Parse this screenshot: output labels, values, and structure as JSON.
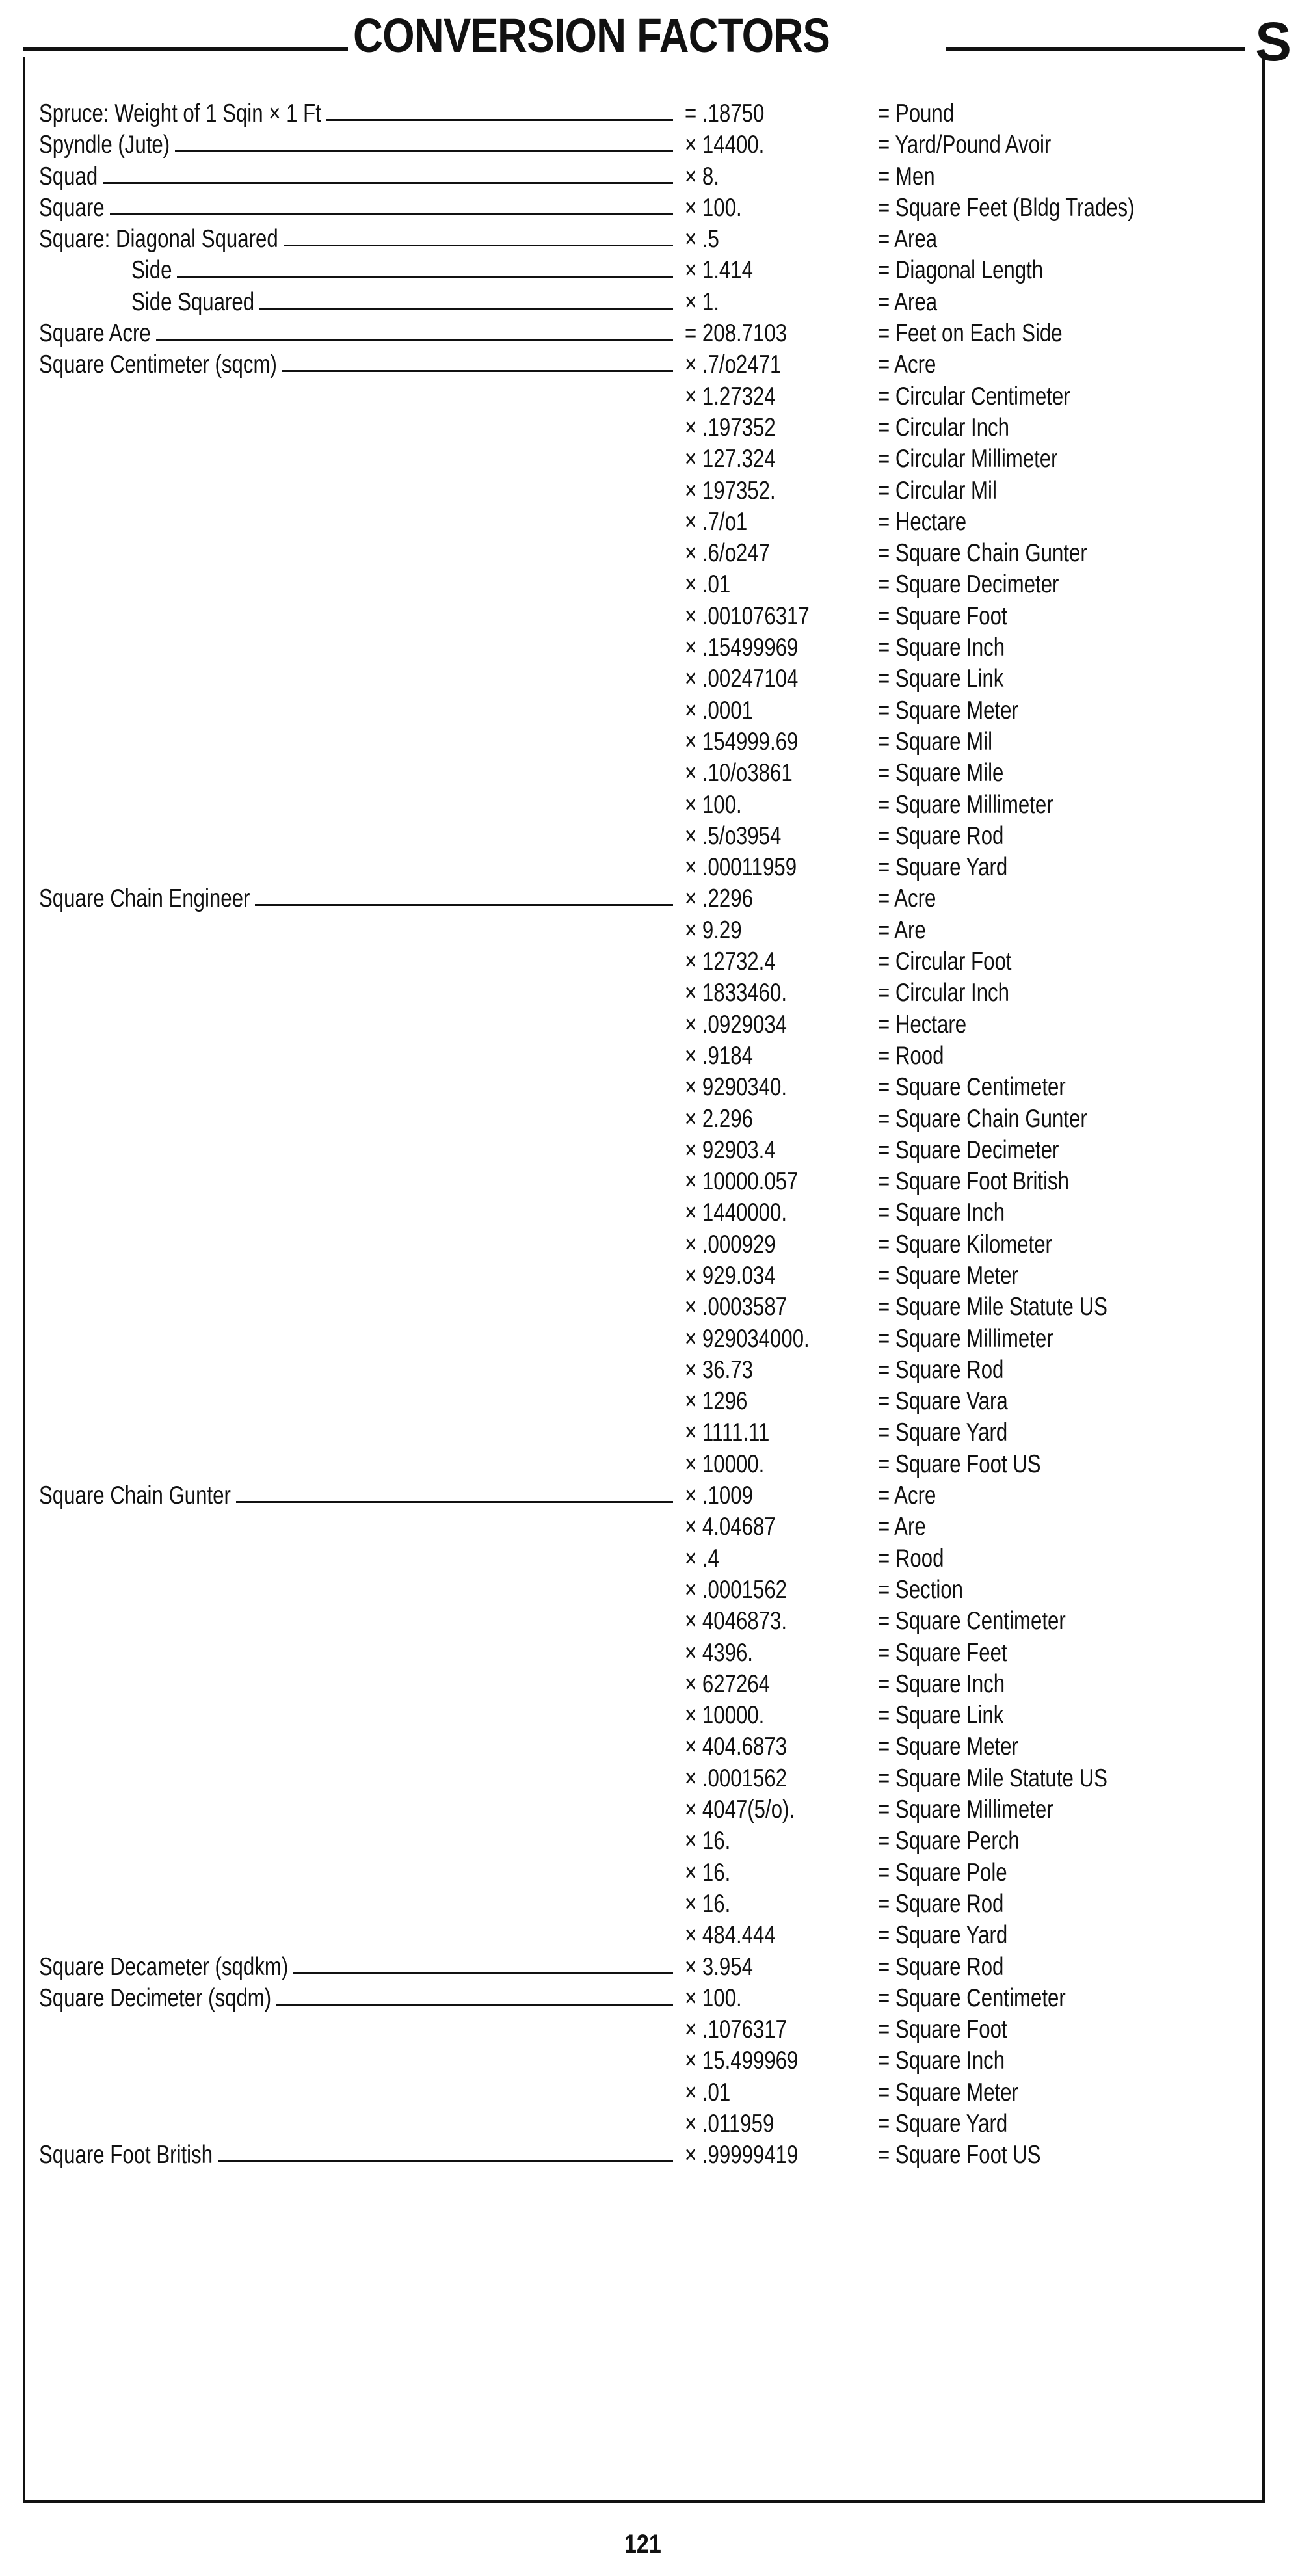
{
  "header": {
    "title": "CONVERSION FACTORS",
    "section_letter": "S"
  },
  "rows": [
    {
      "label": "Spruce: Weight of 1 Sqin × 1 Ft",
      "factor": "= .18750",
      "result": "= Pound"
    },
    {
      "label": "Spyndle (Jute)",
      "factor": "× 14400.",
      "result": "= Yard/Pound Avoir"
    },
    {
      "label": "Squad",
      "factor": "× 8.",
      "result": "= Men"
    },
    {
      "label": "Square",
      "factor": "× 100.",
      "result": "= Square Feet (Bldg Trades)"
    },
    {
      "label": "Square: Diagonal Squared",
      "factor": "× .5",
      "result": "= Area"
    },
    {
      "label": "Side",
      "indent": true,
      "factor": "× 1.414",
      "result": "= Diagonal Length"
    },
    {
      "label": "Side Squared",
      "indent": true,
      "factor": "× 1.",
      "result": "= Area"
    },
    {
      "label": "Square Acre",
      "factor": "= 208.7103",
      "result": "= Feet on Each Side"
    },
    {
      "label": "Square Centimeter (sqcm)",
      "factor": "× .7/o2471",
      "result": "= Acre"
    },
    {
      "label": "",
      "factor": "× 1.27324",
      "result": "= Circular Centimeter"
    },
    {
      "label": "",
      "factor": "× .197352",
      "result": "= Circular Inch"
    },
    {
      "label": "",
      "factor": "× 127.324",
      "result": "= Circular Millimeter"
    },
    {
      "label": "",
      "factor": "× 197352.",
      "result": "= Circular Mil"
    },
    {
      "label": "",
      "factor": "× .7/o1",
      "result": "= Hectare"
    },
    {
      "label": "",
      "factor": "× .6/o247",
      "result": "= Square Chain Gunter"
    },
    {
      "label": "",
      "factor": "× .01",
      "result": "= Square Decimeter"
    },
    {
      "label": "",
      "factor": "× .001076317",
      "result": "= Square Foot"
    },
    {
      "label": "",
      "factor": "× .15499969",
      "result": "= Square Inch"
    },
    {
      "label": "",
      "factor": "× .00247104",
      "result": "= Square Link"
    },
    {
      "label": "",
      "factor": "× .0001",
      "result": "= Square Meter"
    },
    {
      "label": "",
      "factor": "× 154999.69",
      "result": "= Square Mil"
    },
    {
      "label": "",
      "factor": "× .10/o3861",
      "result": "= Square Mile"
    },
    {
      "label": "",
      "factor": "× 100.",
      "result": "= Square Millimeter"
    },
    {
      "label": "",
      "factor": "× .5/o3954",
      "result": "= Square Rod"
    },
    {
      "label": "",
      "factor": "× .00011959",
      "result": "= Square Yard"
    },
    {
      "label": "Square Chain Engineer",
      "factor": "× .2296",
      "result": "= Acre"
    },
    {
      "label": "",
      "factor": "× 9.29",
      "result": "= Are"
    },
    {
      "label": "",
      "factor": "× 12732.4",
      "result": "= Circular Foot"
    },
    {
      "label": "",
      "factor": "× 1833460.",
      "result": "= Circular Inch"
    },
    {
      "label": "",
      "factor": "× .0929034",
      "result": "= Hectare"
    },
    {
      "label": "",
      "factor": "× .9184",
      "result": "= Rood"
    },
    {
      "label": "",
      "factor": "× 9290340.",
      "result": "= Square Centimeter"
    },
    {
      "label": "",
      "factor": "× 2.296",
      "result": "= Square Chain Gunter"
    },
    {
      "label": "",
      "factor": "× 92903.4",
      "result": "= Square Decimeter"
    },
    {
      "label": "",
      "factor": "× 10000.057",
      "result": "= Square Foot British"
    },
    {
      "label": "",
      "factor": "× 1440000.",
      "result": "= Square Inch"
    },
    {
      "label": "",
      "factor": "× .000929",
      "result": "= Square Kilometer"
    },
    {
      "label": "",
      "factor": "× 929.034",
      "result": "= Square Meter"
    },
    {
      "label": "",
      "factor": "× .0003587",
      "result": "= Square Mile Statute US"
    },
    {
      "label": "",
      "factor": "× 929034000.",
      "result": "= Square Millimeter"
    },
    {
      "label": "",
      "factor": "× 36.73",
      "result": "= Square Rod"
    },
    {
      "label": "",
      "factor": "× 1296",
      "result": "= Square Vara"
    },
    {
      "label": "",
      "factor": "× 1111.11",
      "result": "= Square Yard"
    },
    {
      "label": "",
      "factor": "× 10000.",
      "result": "= Square Foot US"
    },
    {
      "label": "Square Chain Gunter",
      "factor": "× .1009",
      "result": "= Acre"
    },
    {
      "label": "",
      "factor": "× 4.04687",
      "result": "= Are"
    },
    {
      "label": "",
      "factor": "× .4",
      "result": "= Rood"
    },
    {
      "label": "",
      "factor": "× .0001562",
      "result": "= Section"
    },
    {
      "label": "",
      "factor": "× 4046873.",
      "result": "= Square Centimeter"
    },
    {
      "label": "",
      "factor": "× 4396.",
      "result": "= Square Feet"
    },
    {
      "label": "",
      "factor": "× 627264",
      "result": "= Square Inch"
    },
    {
      "label": "",
      "factor": "× 10000.",
      "result": "= Square Link"
    },
    {
      "label": "",
      "factor": "× 404.6873",
      "result": "= Square Meter"
    },
    {
      "label": "",
      "factor": "× .0001562",
      "result": "= Square Mile Statute US"
    },
    {
      "label": "",
      "factor": "× 4047(5/o).",
      "result": "= Square Millimeter"
    },
    {
      "label": "",
      "factor": "× 16.",
      "result": "= Square Perch"
    },
    {
      "label": "",
      "factor": "× 16.",
      "result": "= Square Pole"
    },
    {
      "label": "",
      "factor": "× 16.",
      "result": "= Square Rod"
    },
    {
      "label": "",
      "factor": "× 484.444",
      "result": "= Square Yard"
    },
    {
      "label": "Square Decameter (sqdkm)",
      "factor": "× 3.954",
      "result": "= Square Rod"
    },
    {
      "label": "Square Decimeter (sqdm)",
      "factor": "× 100.",
      "result": "= Square Centimeter"
    },
    {
      "label": "",
      "factor": "× .1076317",
      "result": "= Square Foot"
    },
    {
      "label": "",
      "factor": "× 15.499969",
      "result": "= Square Inch"
    },
    {
      "label": "",
      "factor": "× .01",
      "result": "= Square Meter"
    },
    {
      "label": "",
      "factor": "× .011959",
      "result": "= Square Yard"
    },
    {
      "label": "Square Foot British",
      "factor": "× .99999419",
      "result": "= Square Foot US"
    }
  ],
  "footer": {
    "page_number": "121"
  }
}
